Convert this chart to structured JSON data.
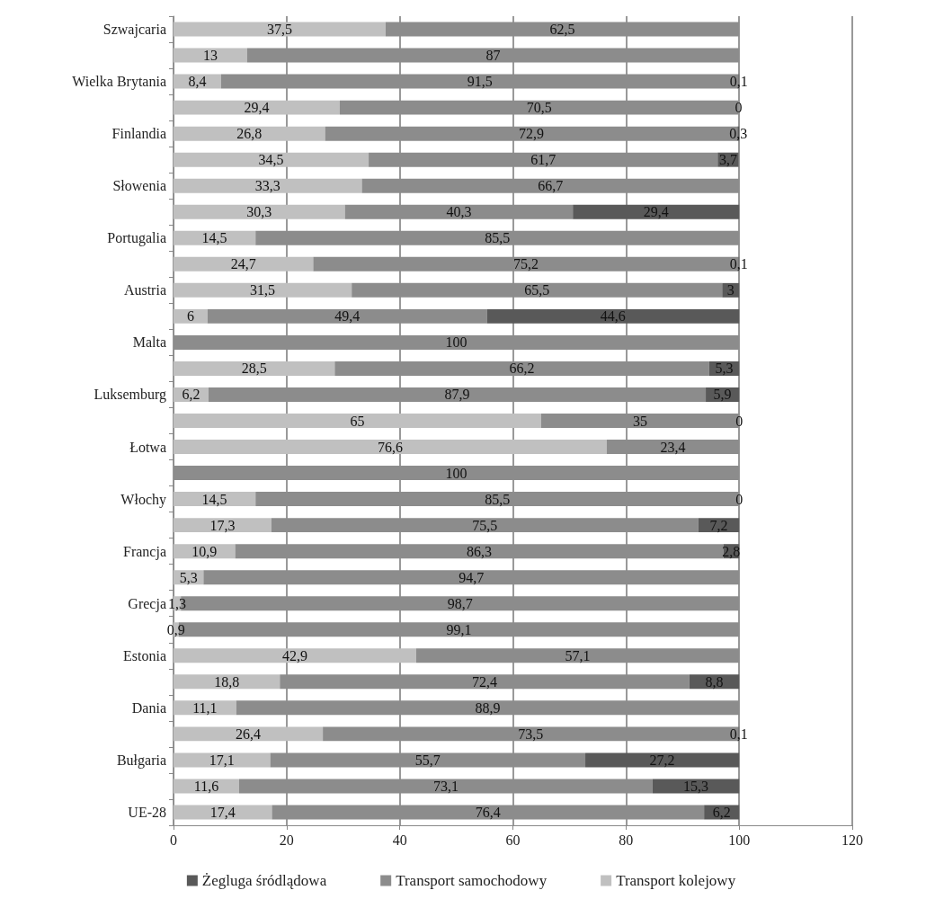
{
  "chart_data": {
    "type": "bar",
    "orientation": "horizontal",
    "stacked": true,
    "categories": [
      "Szwajcaria",
      null,
      "Wielka Brytania",
      null,
      "Finlandia",
      null,
      "Słowenia",
      null,
      "Portugalia",
      null,
      "Austria",
      null,
      "Malta",
      null,
      "Luksemburg",
      null,
      "Łotwa",
      null,
      "Włochy",
      null,
      "Francja",
      null,
      "Grecja",
      null,
      "Estonia",
      null,
      "Dania",
      null,
      "Bułgaria",
      null,
      "UE-28"
    ],
    "series": [
      {
        "name": "Transport kolejowy",
        "color": "#c0c0c0",
        "values": [
          37.5,
          13,
          8.4,
          29.4,
          26.8,
          34.5,
          33.3,
          30.3,
          14.5,
          24.7,
          31.5,
          6,
          null,
          28.5,
          6.2,
          65,
          76.6,
          null,
          14.5,
          17.3,
          10.9,
          5.3,
          1.3,
          0.9,
          42.9,
          18.8,
          11.1,
          26.4,
          17.1,
          11.6,
          17.4
        ],
        "value_labels": [
          "37,5",
          "13",
          "8,4",
          "29,4",
          "26,8",
          "34,5",
          "33,3",
          "30,3",
          "14,5",
          "24,7",
          "31,5",
          "6",
          null,
          "28,5",
          "6,2",
          "65",
          "76,6",
          null,
          "14,5",
          "17,3",
          "10,9",
          "5,3",
          "1,3",
          "0,9",
          "42,9",
          "18,8",
          "11,1",
          "26,4",
          "17,1",
          "11,6",
          "17,4"
        ]
      },
      {
        "name": "Transport samochodowy",
        "color": "#8c8c8c",
        "values": [
          62.5,
          87,
          91.5,
          70.5,
          72.9,
          61.7,
          66.7,
          40.3,
          85.5,
          75.2,
          65.5,
          49.4,
          100,
          66.2,
          87.9,
          35,
          23.4,
          100,
          85.5,
          75.5,
          86.3,
          94.7,
          98.7,
          99.1,
          57.1,
          72.4,
          88.9,
          73.5,
          55.7,
          73.1,
          76.4
        ],
        "value_labels": [
          "62,5",
          "87",
          "91,5",
          "70,5",
          "72,9",
          "61,7",
          "66,7",
          "40,3",
          "85,5",
          "75,2",
          "65,5",
          "49,4",
          "100",
          "66,2",
          "87,9",
          "35",
          "23,4",
          "100",
          "85,5",
          "75,5",
          "86,3",
          "94,7",
          "98,7",
          "99,1",
          "57,1",
          "72,4",
          "88,9",
          "73,5",
          "55,7",
          "73,1",
          "76,4"
        ]
      },
      {
        "name": "Żegluga śródlądowa",
        "color": "#595959",
        "values": [
          null,
          null,
          0.1,
          0,
          0.3,
          3.7,
          null,
          29.4,
          null,
          0.1,
          3,
          44.6,
          null,
          5.3,
          5.9,
          0,
          null,
          null,
          0,
          7.2,
          2.8,
          null,
          null,
          null,
          null,
          8.8,
          null,
          0.1,
          27.2,
          15.3,
          6.2
        ],
        "value_labels": [
          null,
          null,
          "0,1",
          "0",
          "0,3",
          "3,7",
          null,
          "29,4",
          null,
          "0,1",
          "3",
          "44,6",
          null,
          "5,3",
          "5,9",
          "0",
          null,
          null,
          "0",
          "7,2",
          "2,8",
          null,
          null,
          null,
          null,
          "8,8",
          null,
          "0,1",
          "27,2",
          "15,3",
          "6,2"
        ]
      }
    ],
    "xlim": [
      0,
      120
    ],
    "xticks": [
      0,
      20,
      40,
      60,
      80,
      100,
      120
    ],
    "grid": "x",
    "legend": "bottom"
  }
}
